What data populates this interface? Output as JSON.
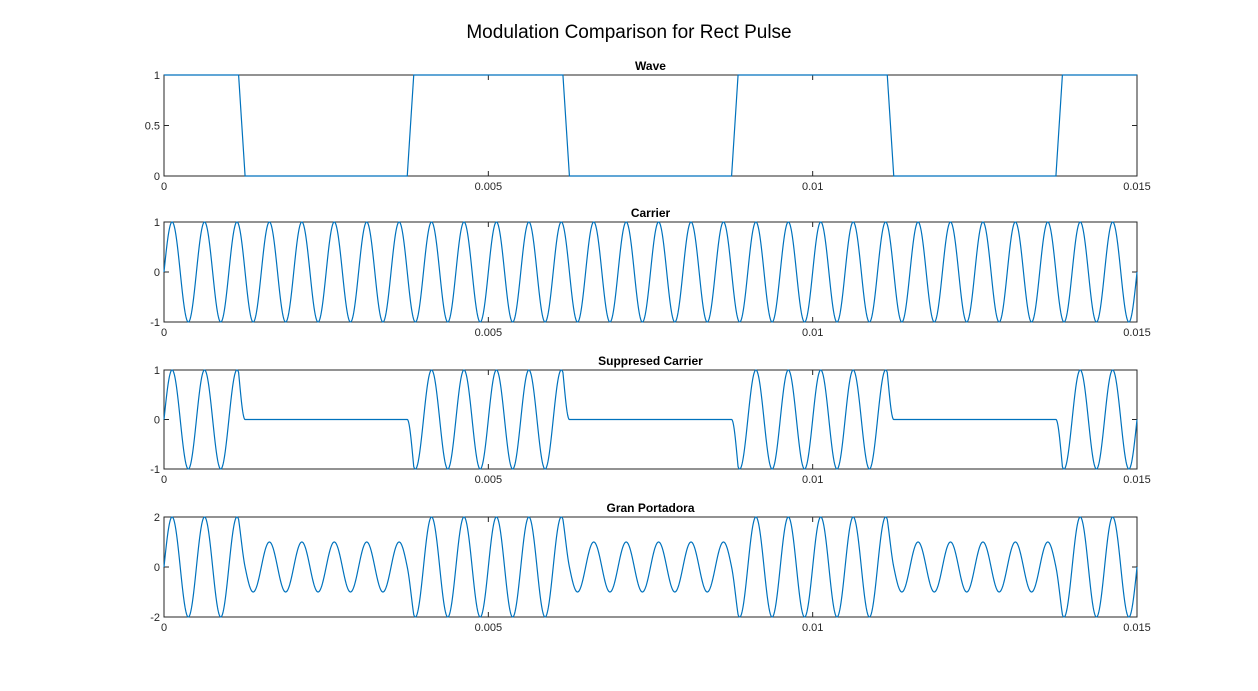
{
  "figure": {
    "title": "Modulation Comparison for Rect Pulse"
  },
  "chart_data": [
    {
      "type": "line",
      "title": "Wave",
      "xlim": [
        0,
        0.015
      ],
      "ylim": [
        0,
        1
      ],
      "xticks": [
        "0",
        "0.005",
        "0.01",
        "0.015"
      ],
      "yticks": [
        "0",
        "0.5",
        "1"
      ],
      "xtick_values": [
        0,
        0.005,
        0.01,
        0.015
      ],
      "ytick_values": [
        0,
        0.5,
        1
      ],
      "color": "#0072BD",
      "series": {
        "signal": "rect_pulse",
        "period": 0.005,
        "high_duration": 0.00125,
        "transitions": [
          0.00115,
          0.00125,
          0.00375,
          0.00385,
          0.00615,
          0.00625,
          0.00875,
          0.00885,
          0.01115,
          0.01125,
          0.01375,
          0.01385
        ]
      }
    },
    {
      "type": "line",
      "title": "Carrier",
      "xlim": [
        0,
        0.015
      ],
      "ylim": [
        -1,
        1
      ],
      "xticks": [
        "0",
        "0.005",
        "0.01",
        "0.015"
      ],
      "yticks": [
        "-1",
        "0",
        "1"
      ],
      "xtick_values": [
        0,
        0.005,
        0.01,
        0.015
      ],
      "ytick_values": [
        -1,
        0,
        1
      ],
      "color": "#0072BD",
      "series": {
        "signal": "sin",
        "amplitude": 1,
        "frequency_hz": 2000,
        "phase": 0
      }
    },
    {
      "type": "line",
      "title": "Suppresed Carrier",
      "xlim": [
        0,
        0.015
      ],
      "ylim": [
        -1,
        1
      ],
      "xticks": [
        "0",
        "0.005",
        "0.01",
        "0.015"
      ],
      "yticks": [
        "-1",
        "0",
        "1"
      ],
      "xtick_values": [
        0,
        0.005,
        0.01,
        0.015
      ],
      "ytick_values": [
        -1,
        0,
        1
      ],
      "color": "#0072BD",
      "series": {
        "signal": "rect_pulse*sin",
        "amplitude": 1,
        "frequency_hz": 2000
      }
    },
    {
      "type": "line",
      "title": "Gran Portadora",
      "xlim": [
        0,
        0.015
      ],
      "ylim": [
        -2,
        2
      ],
      "xticks": [
        "0",
        "0.005",
        "0.01",
        "0.015"
      ],
      "yticks": [
        "-2",
        "0",
        "2"
      ],
      "xtick_values": [
        0,
        0.005,
        0.01,
        0.015
      ],
      "ytick_values": [
        -2,
        0,
        2
      ],
      "color": "#0072BD",
      "series": {
        "signal": "(1+rect_pulse)*sin",
        "amplitude": 1,
        "frequency_hz": 2000
      }
    }
  ]
}
